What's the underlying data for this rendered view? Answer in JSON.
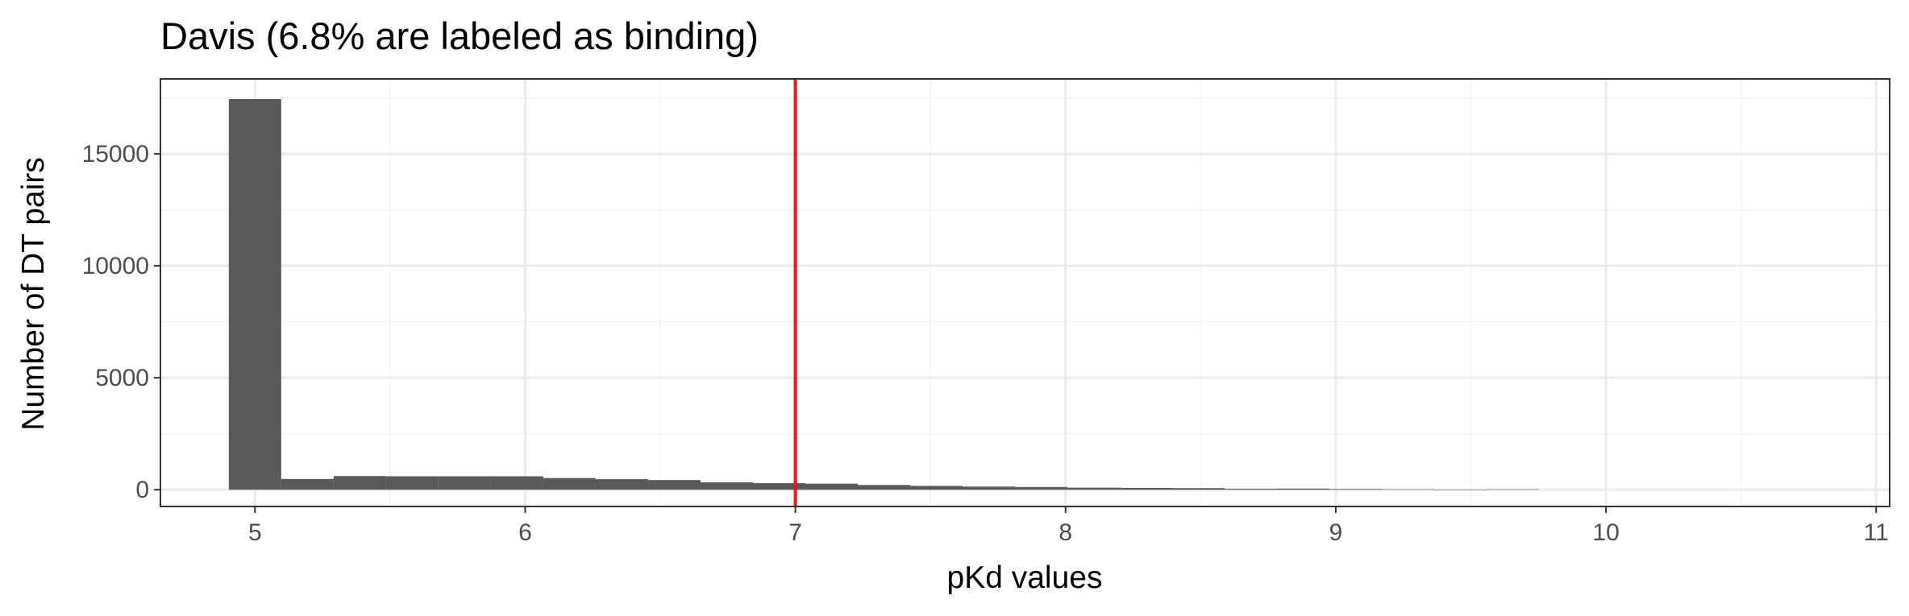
{
  "chart_data": {
    "type": "bar",
    "title": "Davis (6.8% are labeled as binding)",
    "xlabel": "pKd values",
    "ylabel": "Number of DT pairs",
    "xlim": [
      4.65,
      11.05
    ],
    "ylim": [
      -750,
      18350
    ],
    "xticks": [
      5,
      6,
      7,
      8,
      9,
      10,
      11
    ],
    "yticks": [
      0,
      5000,
      10000,
      15000
    ],
    "bin_width": 0.194,
    "bins": [
      {
        "x": 5.0,
        "y": 17450
      },
      {
        "x": 5.194,
        "y": 480
      },
      {
        "x": 5.388,
        "y": 610
      },
      {
        "x": 5.582,
        "y": 600
      },
      {
        "x": 5.776,
        "y": 600
      },
      {
        "x": 5.97,
        "y": 600
      },
      {
        "x": 6.164,
        "y": 520
      },
      {
        "x": 6.358,
        "y": 470
      },
      {
        "x": 6.552,
        "y": 430
      },
      {
        "x": 6.746,
        "y": 330
      },
      {
        "x": 6.94,
        "y": 290
      },
      {
        "x": 7.134,
        "y": 270
      },
      {
        "x": 7.328,
        "y": 210
      },
      {
        "x": 7.522,
        "y": 170
      },
      {
        "x": 7.716,
        "y": 140
      },
      {
        "x": 7.91,
        "y": 120
      },
      {
        "x": 8.104,
        "y": 90
      },
      {
        "x": 8.298,
        "y": 80
      },
      {
        "x": 8.492,
        "y": 70
      },
      {
        "x": 8.686,
        "y": 40
      },
      {
        "x": 8.88,
        "y": 50
      },
      {
        "x": 9.074,
        "y": 30
      },
      {
        "x": 9.268,
        "y": 20
      },
      {
        "x": 9.462,
        "y": 5
      },
      {
        "x": 9.656,
        "y": 20
      }
    ],
    "vline": {
      "x": 7.0,
      "color": "#e41a1c"
    },
    "bar_color": "#595959",
    "grid": true,
    "legend": "none"
  }
}
